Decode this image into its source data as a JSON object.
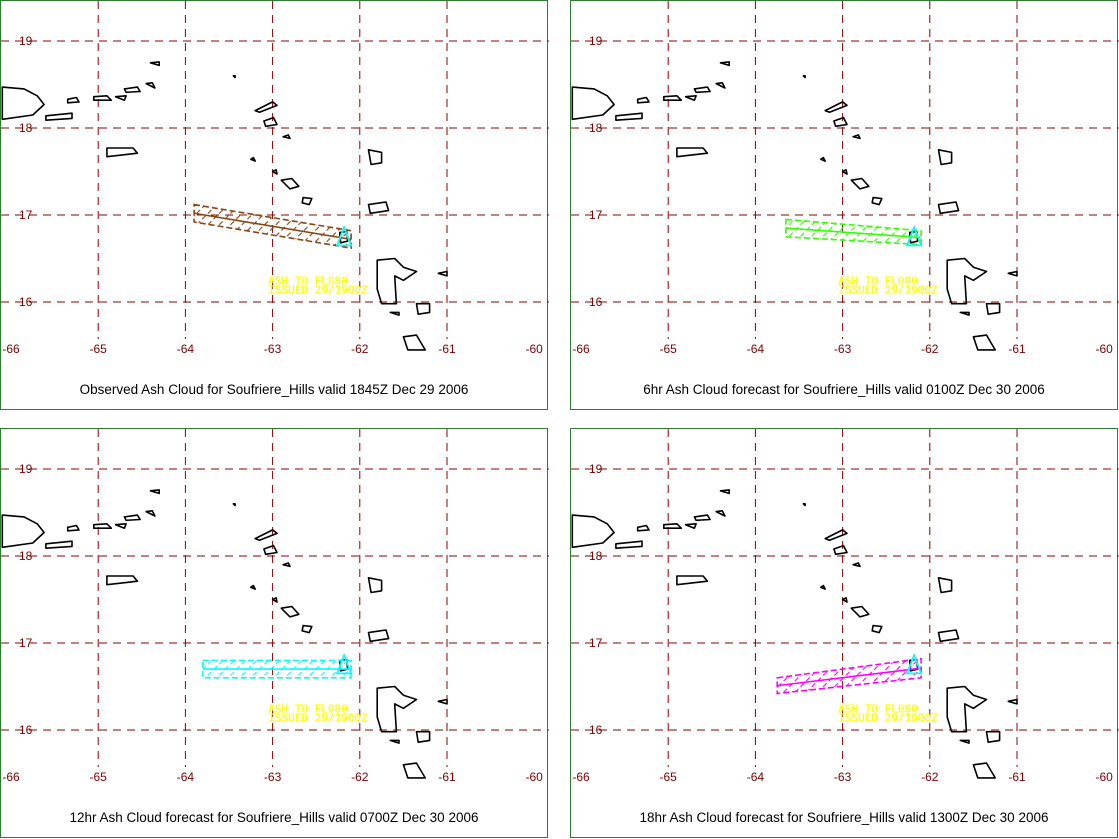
{
  "colors": {
    "grid": "#8b0000",
    "coast": "#000000",
    "panel_border": "#2e7d32",
    "note_text": "#ffff00",
    "volcano_marker": "#00ffff"
  },
  "axes": {
    "lon_ticks": [
      "-66",
      "-65",
      "-64",
      "-63",
      "-62",
      "-61",
      "-60"
    ],
    "lat_ticks": [
      "19",
      "18",
      "17",
      "16"
    ],
    "lon_range": [
      -66,
      -60
    ],
    "lat_range": [
      15.45,
      19.5
    ]
  },
  "note": {
    "line1": "ASH TO FL080",
    "line2": "ISSUED 29/1900Z"
  },
  "volcano": {
    "name": "Soufriere_Hills",
    "lon": -62.18,
    "lat": 16.72
  },
  "panels": [
    {
      "caption": "Observed Ash Cloud for Soufriere_Hills valid 1845Z Dec 29 2006",
      "cloud_color": "#8b4513",
      "cloud_polygon": [
        [
          -63.9,
          17.12
        ],
        [
          -62.1,
          16.82
        ],
        [
          -62.1,
          16.62
        ],
        [
          -63.9,
          16.92
        ]
      ]
    },
    {
      "caption": "6hr Ash Cloud forecast for Soufriere_Hills valid 0100Z Dec 30 2006",
      "cloud_color": "#33ff00",
      "cloud_polygon": [
        [
          -63.65,
          16.95
        ],
        [
          -62.1,
          16.82
        ],
        [
          -62.1,
          16.66
        ],
        [
          -63.65,
          16.75
        ]
      ]
    },
    {
      "caption": "12hr Ash Cloud forecast for Soufriere_Hills valid 0700Z Dec 30 2006",
      "cloud_color": "#00ffff",
      "cloud_polygon": [
        [
          -63.8,
          16.8
        ],
        [
          -62.1,
          16.8
        ],
        [
          -62.1,
          16.6
        ],
        [
          -63.8,
          16.6
        ]
      ]
    },
    {
      "caption": "18hr Ash Cloud forecast for Soufriere_Hills valid 1300Z Dec 30 2006",
      "cloud_color": "#ff00ff",
      "cloud_polygon": [
        [
          -63.75,
          16.6
        ],
        [
          -62.1,
          16.82
        ],
        [
          -62.1,
          16.6
        ],
        [
          -63.75,
          16.42
        ]
      ]
    }
  ],
  "islands": {
    "puerto_rico": [
      [
        -66.1,
        18.47
      ],
      [
        -65.85,
        18.45
      ],
      [
        -65.7,
        18.37
      ],
      [
        -65.62,
        18.27
      ],
      [
        -65.75,
        18.15
      ],
      [
        -66.1,
        18.1
      ]
    ],
    "vieques": [
      [
        -65.6,
        18.14
      ],
      [
        -65.3,
        18.17
      ],
      [
        -65.3,
        18.11
      ],
      [
        -65.6,
        18.09
      ]
    ],
    "culebra": [
      [
        -65.35,
        18.33
      ],
      [
        -65.25,
        18.35
      ],
      [
        -65.22,
        18.3
      ],
      [
        -65.35,
        18.29
      ]
    ],
    "st_thomas": [
      [
        -65.05,
        18.36
      ],
      [
        -64.9,
        18.37
      ],
      [
        -64.85,
        18.32
      ],
      [
        -65.05,
        18.32
      ]
    ],
    "st_john": [
      [
        -64.8,
        18.36
      ],
      [
        -64.68,
        18.37
      ],
      [
        -64.7,
        18.32
      ]
    ],
    "tortola": [
      [
        -64.7,
        18.45
      ],
      [
        -64.55,
        18.47
      ],
      [
        -64.52,
        18.42
      ],
      [
        -64.68,
        18.41
      ]
    ],
    "virgin_gorda": [
      [
        -64.45,
        18.51
      ],
      [
        -64.38,
        18.52
      ],
      [
        -64.35,
        18.46
      ]
    ],
    "anegada": [
      [
        -64.4,
        18.75
      ],
      [
        -64.3,
        18.76
      ],
      [
        -64.3,
        18.72
      ]
    ],
    "st_croix": [
      [
        -64.9,
        17.77
      ],
      [
        -64.6,
        17.77
      ],
      [
        -64.55,
        17.71
      ],
      [
        -64.9,
        17.67
      ]
    ],
    "sombrero": [
      [
        -63.45,
        18.6
      ],
      [
        -63.43,
        18.6
      ],
      [
        -63.43,
        18.58
      ]
    ],
    "anguilla": [
      [
        -63.2,
        18.2
      ],
      [
        -63.0,
        18.3
      ],
      [
        -62.95,
        18.26
      ],
      [
        -63.15,
        18.18
      ]
    ],
    "st_martin": [
      [
        -63.1,
        18.08
      ],
      [
        -62.99,
        18.12
      ],
      [
        -62.95,
        18.04
      ],
      [
        -63.08,
        18.02
      ]
    ],
    "st_barth": [
      [
        -62.88,
        17.9
      ],
      [
        -62.82,
        17.92
      ],
      [
        -62.8,
        17.88
      ]
    ],
    "saba": [
      [
        -63.25,
        17.64
      ],
      [
        -63.22,
        17.66
      ],
      [
        -63.2,
        17.62
      ]
    ],
    "statia": [
      [
        -63.0,
        17.5
      ],
      [
        -62.96,
        17.52
      ],
      [
        -62.95,
        17.47
      ]
    ],
    "st_kitts": [
      [
        -62.9,
        17.4
      ],
      [
        -62.78,
        17.42
      ],
      [
        -62.7,
        17.33
      ],
      [
        -62.8,
        17.3
      ]
    ],
    "nevis": [
      [
        -62.65,
        17.2
      ],
      [
        -62.55,
        17.19
      ],
      [
        -62.58,
        17.12
      ],
      [
        -62.66,
        17.14
      ]
    ],
    "barbuda": [
      [
        -61.9,
        17.75
      ],
      [
        -61.75,
        17.72
      ],
      [
        -61.75,
        17.6
      ],
      [
        -61.87,
        17.58
      ]
    ],
    "antigua": [
      [
        -61.9,
        17.12
      ],
      [
        -61.7,
        17.15
      ],
      [
        -61.67,
        17.05
      ],
      [
        -61.88,
        17.02
      ]
    ],
    "montserrat": [
      [
        -62.23,
        16.8
      ],
      [
        -62.15,
        16.81
      ],
      [
        -62.14,
        16.7
      ],
      [
        -62.22,
        16.68
      ]
    ],
    "guadeloupe": [
      [
        -61.8,
        16.48
      ],
      [
        -61.6,
        16.5
      ],
      [
        -61.5,
        16.4
      ],
      [
        -61.35,
        16.35
      ],
      [
        -61.5,
        16.25
      ],
      [
        -61.6,
        16.3
      ],
      [
        -61.58,
        15.98
      ],
      [
        -61.75,
        15.98
      ],
      [
        -61.8,
        16.15
      ]
    ],
    "desirade": [
      [
        -61.1,
        16.33
      ],
      [
        -61.0,
        16.35
      ],
      [
        -61.0,
        16.3
      ]
    ],
    "marie_galante": [
      [
        -61.35,
        15.98
      ],
      [
        -61.2,
        15.98
      ],
      [
        -61.2,
        15.88
      ],
      [
        -61.33,
        15.86
      ]
    ],
    "les_saintes": [
      [
        -61.65,
        15.88
      ],
      [
        -61.55,
        15.88
      ],
      [
        -61.55,
        15.85
      ]
    ],
    "dominica": [
      [
        -61.5,
        15.6
      ],
      [
        -61.35,
        15.62
      ],
      [
        -61.25,
        15.45
      ],
      [
        -61.45,
        15.45
      ]
    ]
  }
}
